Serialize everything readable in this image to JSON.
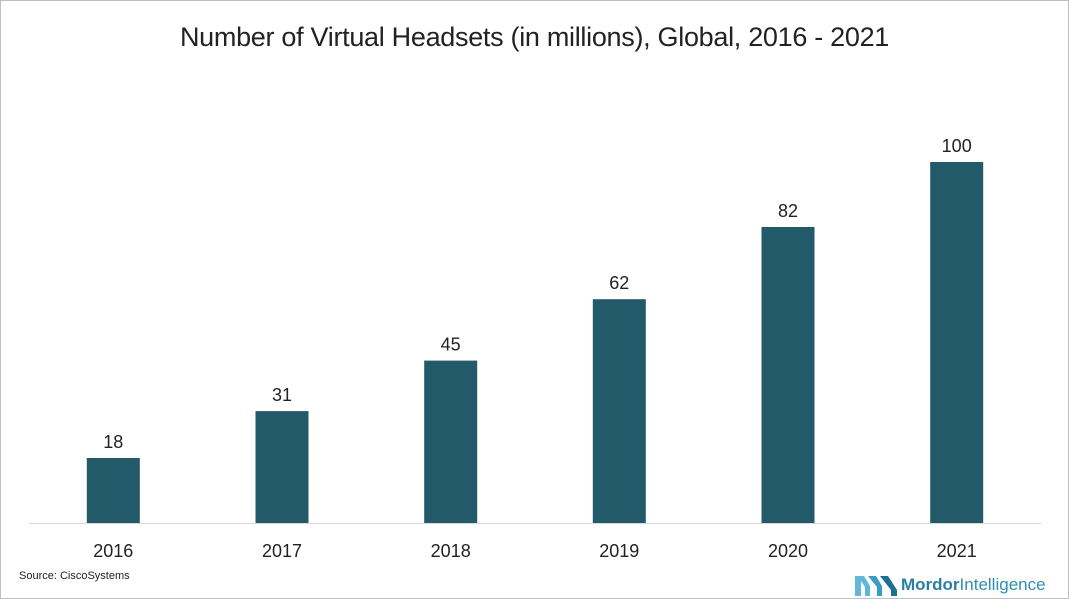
{
  "title": "Number of Virtual Headsets (in millions), Global, 2016 - 2021",
  "source": "Source: CiscoSystems",
  "logo": {
    "brand_strong": "Mordor",
    "brand_light": "Intelligence",
    "icon": "mordor-intelligence-logo-icon"
  },
  "colors": {
    "bar": "#225a69",
    "axis": "#d9d9d9",
    "text": "#222222",
    "logo": "#2e8fb5"
  },
  "chart_data": {
    "type": "bar",
    "title": "Number of Virtual Headsets (in millions), Global, 2016 - 2021",
    "categories": [
      "2016",
      "2017",
      "2018",
      "2019",
      "2020",
      "2021"
    ],
    "values": [
      18,
      31,
      45,
      62,
      82,
      100
    ],
    "data_labels": [
      "18",
      "31",
      "45",
      "62",
      "82",
      "100"
    ],
    "xlabel": "",
    "ylabel": "",
    "ylim": [
      0,
      100
    ],
    "grid": false,
    "legend": "none"
  }
}
